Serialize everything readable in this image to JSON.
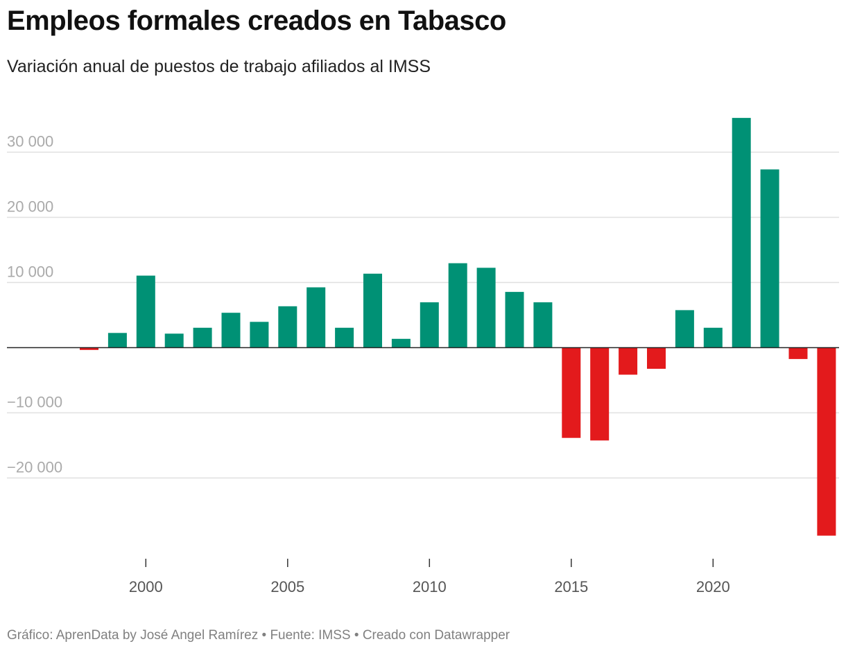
{
  "title": "Empleos formales creados en Tabasco",
  "subtitle": "Variación anual de puestos de trabajo afiliados al IMSS",
  "footer": "Gráfico: AprenData by José Angel Ramírez • Fuente: IMSS • Creado con Datawrapper",
  "colors": {
    "positive": "#009175",
    "negative": "#e31a1c",
    "grid": "#e0e0e0",
    "zero_line": "#222222"
  },
  "chart_data": {
    "type": "bar",
    "title": "Empleos formales creados en Tabasco",
    "subtitle": "Variación anual de puestos de trabajo afiliados al IMSS",
    "xlabel": "",
    "ylabel": "",
    "ylim": [
      -30000,
      35000
    ],
    "grid": true,
    "legend": "none",
    "x_ticks": [
      2000,
      2005,
      2010,
      2015,
      2020
    ],
    "y_ticks": [
      -20000,
      -10000,
      0,
      10000,
      20000,
      30000
    ],
    "y_tick_labels": [
      "−20 000",
      "−10 000",
      "",
      "10 000",
      "20 000",
      "30 000"
    ],
    "categories": [
      1998,
      1999,
      2000,
      2001,
      2002,
      2003,
      2004,
      2005,
      2006,
      2007,
      2008,
      2009,
      2010,
      2011,
      2012,
      2013,
      2014,
      2015,
      2016,
      2017,
      2018,
      2019,
      2020,
      2021,
      2022,
      2023,
      2024
    ],
    "values": [
      -400,
      2200,
      11000,
      2100,
      3000,
      5300,
      3900,
      6300,
      9200,
      3000,
      11300,
      1300,
      6900,
      12900,
      12200,
      8500,
      6900,
      -13900,
      -14300,
      -4200,
      -3300,
      5700,
      3000,
      35200,
      27300,
      -1800,
      -28900
    ]
  }
}
